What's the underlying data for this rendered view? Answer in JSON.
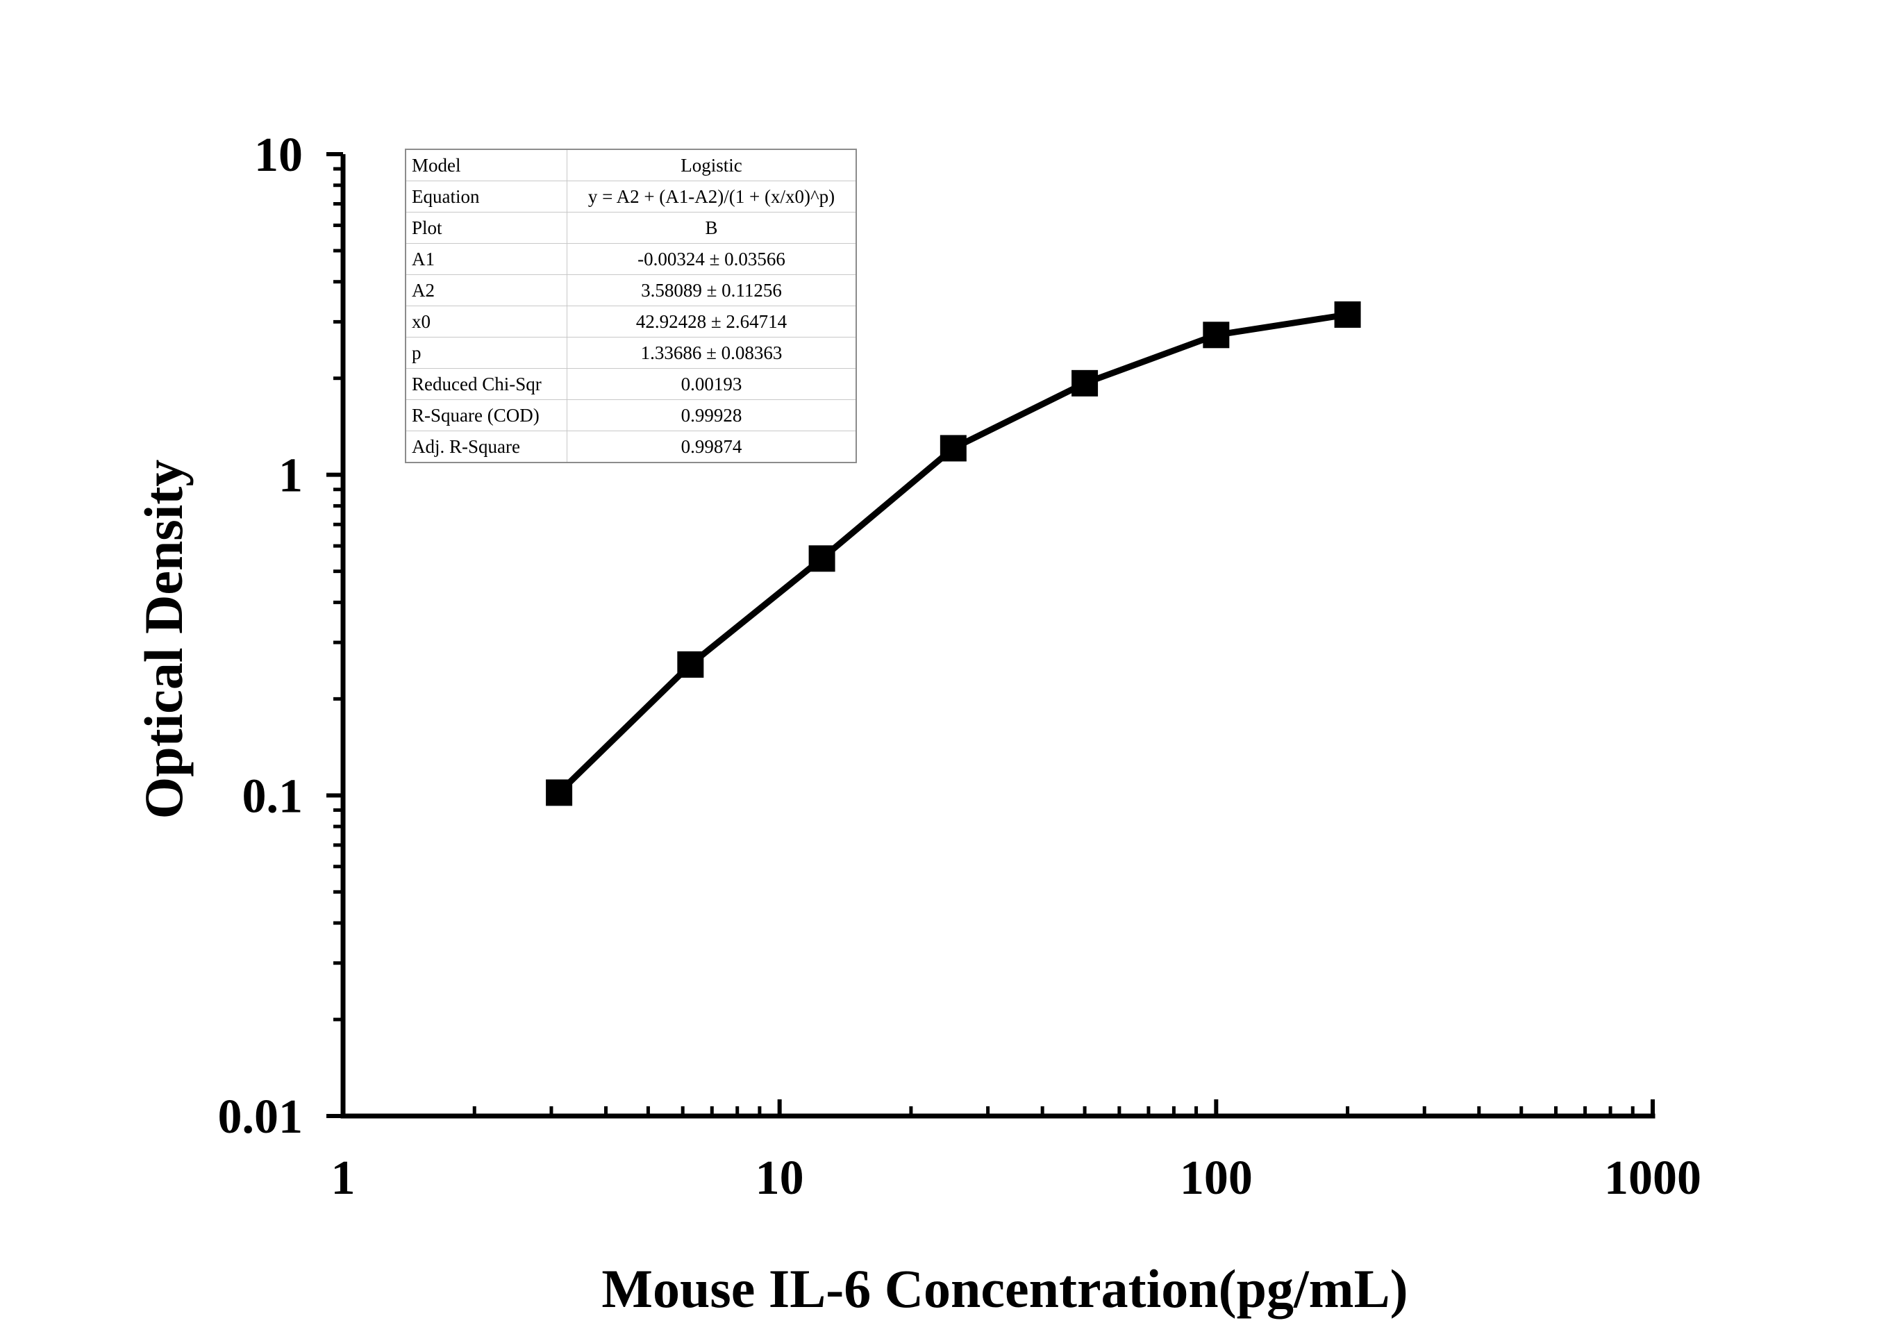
{
  "chart_data": {
    "type": "line",
    "title": "",
    "xlabel": "Mouse IL-6 Concentration(pg/mL)",
    "ylabel": "Optical Density",
    "xscale": "log",
    "yscale": "log",
    "xlim": [
      1,
      1000
    ],
    "ylim": [
      0.01,
      10
    ],
    "x_ticks": [
      1,
      10,
      100,
      1000
    ],
    "x_tick_labels": [
      "1",
      "10",
      "100",
      "1000"
    ],
    "y_ticks": [
      0.01,
      0.1,
      1,
      10
    ],
    "y_tick_labels": [
      "0.01",
      "0.1",
      "1",
      "10"
    ],
    "grid": false,
    "series": [
      {
        "name": "B",
        "marker": "square",
        "color": "#000000",
        "x": [
          3.125,
          6.25,
          12.5,
          25,
          50,
          100,
          200
        ],
        "y": [
          0.102,
          0.256,
          0.548,
          1.21,
          1.93,
          2.73,
          3.16
        ]
      }
    ],
    "fit_table": {
      "legend_position": "top-left",
      "rows": [
        {
          "name": "Model",
          "value": "Logistic"
        },
        {
          "name": "Equation",
          "value": "y = A2 + (A1-A2)/(1 + (x/x0)^p)"
        },
        {
          "name": "Plot",
          "value": "B"
        },
        {
          "name": "A1",
          "value": "-0.00324 ± 0.03566"
        },
        {
          "name": "A2",
          "value": "3.58089 ± 0.11256"
        },
        {
          "name": "x0",
          "value": "42.92428 ± 2.64714"
        },
        {
          "name": "p",
          "value": "1.33686 ± 0.08363"
        },
        {
          "name": "Reduced Chi-Sqr",
          "value": "0.00193"
        },
        {
          "name": "R-Square (COD)",
          "value": "0.99928"
        },
        {
          "name": "Adj. R-Square",
          "value": "0.99874"
        }
      ]
    }
  }
}
